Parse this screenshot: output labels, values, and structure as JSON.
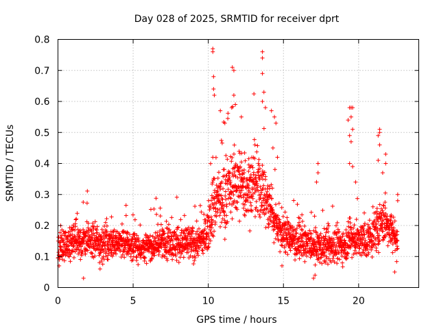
{
  "chart_data": {
    "type": "scatter",
    "title": "Day 028 of 2025, SRMTID for receiver dprt",
    "xlabel": "GPS time / hours",
    "ylabel": "SRMTID / TECUs",
    "xlim": [
      0,
      24
    ],
    "ylim": [
      0,
      0.8
    ],
    "xticks": [
      0,
      5,
      10,
      15,
      20
    ],
    "xtick_labels": [
      "0",
      "5",
      "10",
      "15",
      "20"
    ],
    "yticks": [
      0,
      0.1,
      0.2,
      0.3,
      0.4,
      0.5,
      0.6,
      0.7,
      0.8
    ],
    "ytick_labels": [
      "0",
      "0.1",
      "0.2",
      "0.3",
      "0.4",
      "0.5",
      "0.6",
      "0.7",
      "0.8"
    ],
    "grid": true,
    "marker": "+",
    "color": "#ff0000",
    "n_points_approx": 2400,
    "baseline_profile": {
      "x": [
        0,
        1,
        2,
        3,
        4,
        5,
        6,
        7,
        8,
        9,
        9.8,
        10.3,
        11,
        11.5,
        12,
        12.5,
        13,
        13.5,
        14,
        14.5,
        15,
        16,
        17,
        18,
        19,
        19.5,
        20,
        20.5,
        21,
        21.5,
        22,
        22.6
      ],
      "median": [
        0.12,
        0.15,
        0.15,
        0.14,
        0.15,
        0.13,
        0.13,
        0.15,
        0.14,
        0.14,
        0.16,
        0.27,
        0.29,
        0.33,
        0.34,
        0.32,
        0.33,
        0.32,
        0.27,
        0.21,
        0.17,
        0.15,
        0.13,
        0.13,
        0.14,
        0.16,
        0.15,
        0.15,
        0.17,
        0.21,
        0.2,
        0.15
      ],
      "spread": [
        0.04,
        0.05,
        0.05,
        0.05,
        0.04,
        0.04,
        0.04,
        0.05,
        0.05,
        0.05,
        0.05,
        0.09,
        0.1,
        0.1,
        0.1,
        0.1,
        0.1,
        0.1,
        0.08,
        0.06,
        0.05,
        0.05,
        0.05,
        0.05,
        0.05,
        0.06,
        0.05,
        0.05,
        0.06,
        0.06,
        0.06,
        0.05
      ]
    },
    "notable_points": [
      {
        "x": 10.3,
        "y": 0.77
      },
      {
        "x": 10.3,
        "y": 0.76
      },
      {
        "x": 10.35,
        "y": 0.68
      },
      {
        "x": 10.35,
        "y": 0.64
      },
      {
        "x": 10.4,
        "y": 0.62
      },
      {
        "x": 10.8,
        "y": 0.57
      },
      {
        "x": 11.1,
        "y": 0.53
      },
      {
        "x": 11.6,
        "y": 0.71
      },
      {
        "x": 11.7,
        "y": 0.7
      },
      {
        "x": 11.7,
        "y": 0.62
      },
      {
        "x": 11.8,
        "y": 0.59
      },
      {
        "x": 12.2,
        "y": 0.55
      },
      {
        "x": 13.6,
        "y": 0.76
      },
      {
        "x": 13.6,
        "y": 0.74
      },
      {
        "x": 13.6,
        "y": 0.69
      },
      {
        "x": 13.7,
        "y": 0.63
      },
      {
        "x": 13.6,
        "y": 0.6
      },
      {
        "x": 13.8,
        "y": 0.58
      },
      {
        "x": 14.2,
        "y": 0.57
      },
      {
        "x": 14.4,
        "y": 0.55
      },
      {
        "x": 14.5,
        "y": 0.53
      },
      {
        "x": 14.3,
        "y": 0.45
      },
      {
        "x": 14.6,
        "y": 0.42
      },
      {
        "x": 10.3,
        "y": 0.42
      },
      {
        "x": 17.3,
        "y": 0.4
      },
      {
        "x": 17.3,
        "y": 0.37
      },
      {
        "x": 17.2,
        "y": 0.34
      },
      {
        "x": 19.4,
        "y": 0.58
      },
      {
        "x": 19.5,
        "y": 0.58
      },
      {
        "x": 19.6,
        "y": 0.58
      },
      {
        "x": 19.5,
        "y": 0.55
      },
      {
        "x": 19.3,
        "y": 0.54
      },
      {
        "x": 19.6,
        "y": 0.51
      },
      {
        "x": 19.4,
        "y": 0.49
      },
      {
        "x": 19.5,
        "y": 0.47
      },
      {
        "x": 19.4,
        "y": 0.4
      },
      {
        "x": 19.6,
        "y": 0.39
      },
      {
        "x": 19.8,
        "y": 0.34
      },
      {
        "x": 21.4,
        "y": 0.51
      },
      {
        "x": 21.4,
        "y": 0.5
      },
      {
        "x": 21.3,
        "y": 0.49
      },
      {
        "x": 21.4,
        "y": 0.46
      },
      {
        "x": 21.3,
        "y": 0.41
      },
      {
        "x": 21.8,
        "y": 0.43
      },
      {
        "x": 21.8,
        "y": 0.4
      },
      {
        "x": 21.6,
        "y": 0.37
      },
      {
        "x": 22.6,
        "y": 0.3
      },
      {
        "x": 22.6,
        "y": 0.28
      },
      {
        "x": 1.7,
        "y": 0.03
      },
      {
        "x": 17.0,
        "y": 0.03
      },
      {
        "x": 17.1,
        "y": 0.04
      },
      {
        "x": 22.4,
        "y": 0.05
      },
      {
        "x": 14.9,
        "y": 0.07
      },
      {
        "x": 2.8,
        "y": 0.06
      }
    ]
  }
}
